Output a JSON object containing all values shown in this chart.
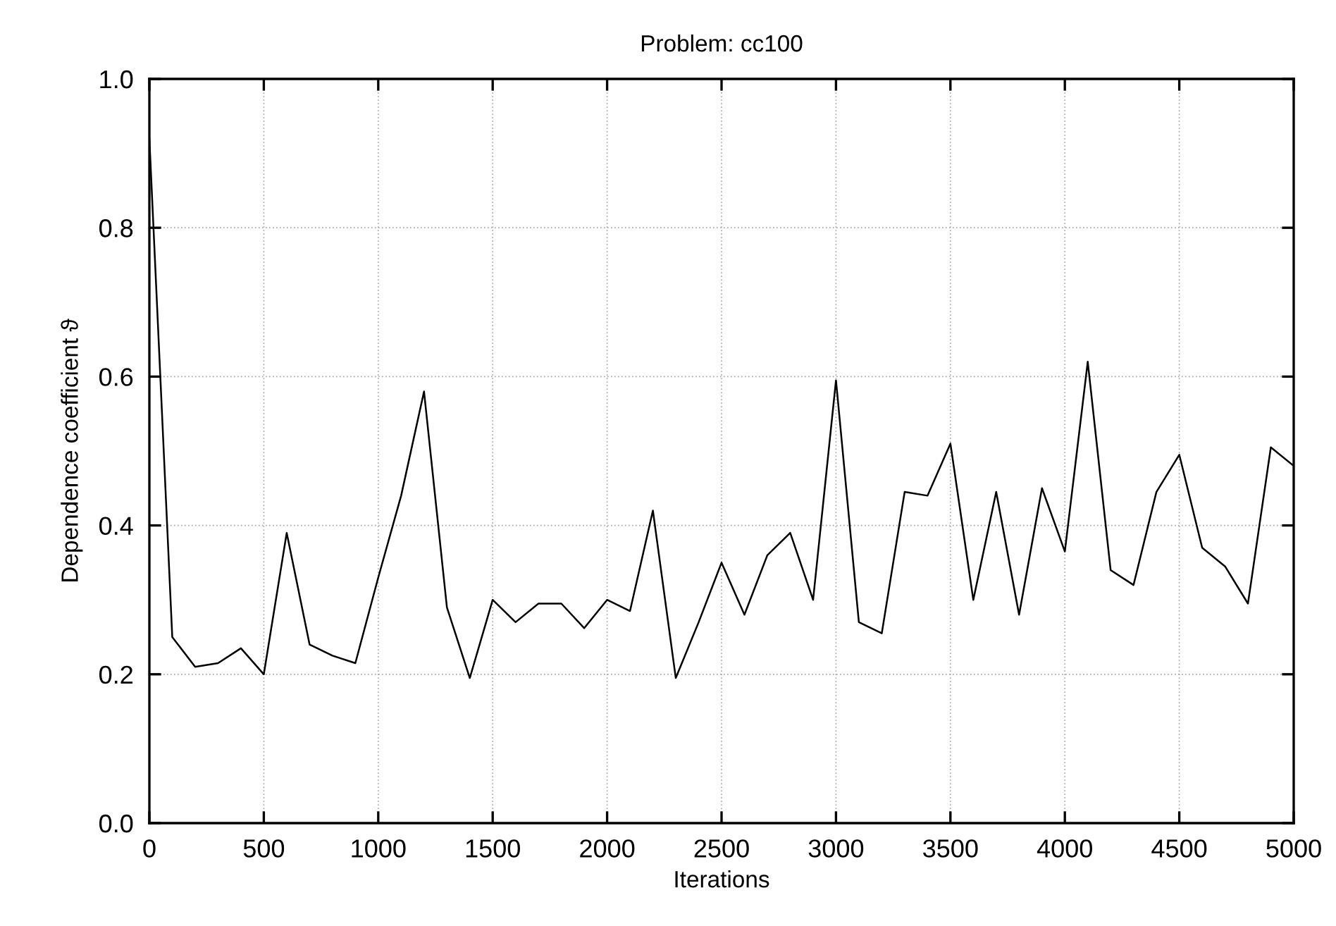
{
  "chart_data": {
    "type": "line",
    "title": "Problem: cc100",
    "xlabel": "Iterations",
    "ylabel": "Dependence coefficient ϑ",
    "x": [
      0,
      100,
      200,
      300,
      400,
      500,
      600,
      700,
      800,
      900,
      1000,
      1100,
      1200,
      1300,
      1400,
      1500,
      1600,
      1700,
      1800,
      1900,
      2000,
      2100,
      2200,
      2300,
      2400,
      2500,
      2600,
      2700,
      2800,
      2900,
      3000,
      3100,
      3200,
      3300,
      3400,
      3500,
      3600,
      3700,
      3800,
      3900,
      4000,
      4100,
      4200,
      4300,
      4400,
      4500,
      4600,
      4700,
      4800,
      4900,
      5000
    ],
    "series": [
      {
        "color": "#000000",
        "values": [
          0.92,
          0.25,
          0.21,
          0.215,
          0.235,
          0.2,
          0.39,
          0.24,
          0.225,
          0.215,
          0.33,
          0.44,
          0.58,
          0.29,
          0.195,
          0.3,
          0.27,
          0.295,
          0.295,
          0.262,
          0.3,
          0.285,
          0.42,
          0.195,
          0.27,
          0.35,
          0.28,
          0.36,
          0.39,
          0.3,
          0.595,
          0.27,
          0.255,
          0.445,
          0.44,
          0.51,
          0.3,
          0.445,
          0.28,
          0.45,
          0.365,
          0.62,
          0.34,
          0.32,
          0.445,
          0.495,
          0.37,
          0.345,
          0.295,
          0.505,
          0.48
        ]
      }
    ],
    "xlim": [
      0,
      5000
    ],
    "ylim": [
      0,
      1
    ],
    "xticks": [
      0,
      500,
      1000,
      1500,
      2000,
      2500,
      3000,
      3500,
      4000,
      4500,
      5000
    ],
    "yticks": [
      {
        "value": 0,
        "label": "0.0"
      },
      {
        "value": 0.2,
        "label": "0.2"
      },
      {
        "value": 0.4,
        "label": "0.4"
      },
      {
        "value": 0.6,
        "label": "0.6"
      },
      {
        "value": 0.8,
        "label": "0.8"
      },
      {
        "value": 1,
        "label": "1.0"
      }
    ],
    "grid": true,
    "line_style": "solid",
    "marker": "none"
  }
}
